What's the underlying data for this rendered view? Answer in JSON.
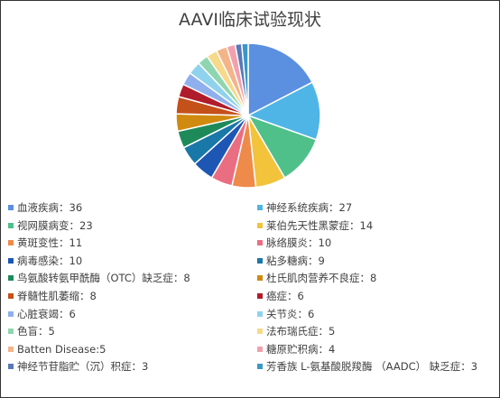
{
  "chart_data": {
    "type": "pie",
    "title": "AAVI临床试验现状",
    "slices": [
      {
        "label": "血液疾病",
        "value": 36,
        "legend": "血液疾病：36",
        "color": "#5b8fe0"
      },
      {
        "label": "神经系统疾病",
        "value": 27,
        "legend": "神经系统疾病：27",
        "color": "#4fb5e6"
      },
      {
        "label": "视网膜病变",
        "value": 23,
        "legend": "视网膜病变：23",
        "color": "#4fc08a"
      },
      {
        "label": "莱伯先天性黑蒙症",
        "value": 14,
        "legend": "莱伯先天性黑蒙症：14",
        "color": "#f2c33b"
      },
      {
        "label": "黄斑变性",
        "value": 11,
        "legend": "黄斑变性：11",
        "color": "#ee8a4a"
      },
      {
        "label": "脉络膜炎",
        "value": 10,
        "legend": "脉络膜炎：10",
        "color": "#ea6e82"
      },
      {
        "label": "病毒感染",
        "value": 10,
        "legend": "病毒感染：10",
        "color": "#1e56b4"
      },
      {
        "label": "粘多糖病",
        "value": 9,
        "legend": "粘多糖病：9",
        "color": "#1a78a8"
      },
      {
        "label": "鸟氨酸转氨甲酰酶（OTC）缺乏症",
        "value": 8,
        "legend": "鸟氨酸转氨甲酰酶（OTC）缺乏症：8",
        "color": "#1e8a5a"
      },
      {
        "label": "杜氏肌肉营养不良症",
        "value": 8,
        "legend": "杜氏肌肉营养不良症：8",
        "color": "#d08a10"
      },
      {
        "label": "脊髓性肌萎缩",
        "value": 8,
        "legend": "脊髓性肌萎缩：8",
        "color": "#c4501a"
      },
      {
        "label": "癌症",
        "value": 6,
        "legend": "癌症：6",
        "color": "#b01c2c"
      },
      {
        "label": "心脏衰竭",
        "value": 6,
        "legend": "心脏衰竭：6",
        "color": "#8fb0ec"
      },
      {
        "label": "关节炎",
        "value": 6,
        "legend": "关节炎：6",
        "color": "#8fd2ee"
      },
      {
        "label": "色盲",
        "value": 5,
        "legend": "色盲：5",
        "color": "#8fd6b0"
      },
      {
        "label": "法布瑞氏症",
        "value": 5,
        "legend": "法布瑞氏症：5",
        "color": "#f6d98a"
      },
      {
        "label": "Batten Disease",
        "value": 5,
        "legend": "Batten Disease:5",
        "color": "#f4b48a"
      },
      {
        "label": "糖原贮积病",
        "value": 4,
        "legend": "糖原贮积病：4",
        "color": "#f2a0ae"
      },
      {
        "label": "神经节苷脂贮（沉）积症",
        "value": 3,
        "legend": "神经节苷脂贮（沉）积症：3",
        "color": "#5878b8"
      },
      {
        "label": "芳香族 L-氨基酸脱羧酶 （AADC） 缺乏症",
        "value": 3,
        "legend": "芳香族 L-氨基酸脱羧酶 （AADC） 缺乏症：3",
        "color": "#3a98c6"
      }
    ],
    "legend_position": "bottom"
  }
}
